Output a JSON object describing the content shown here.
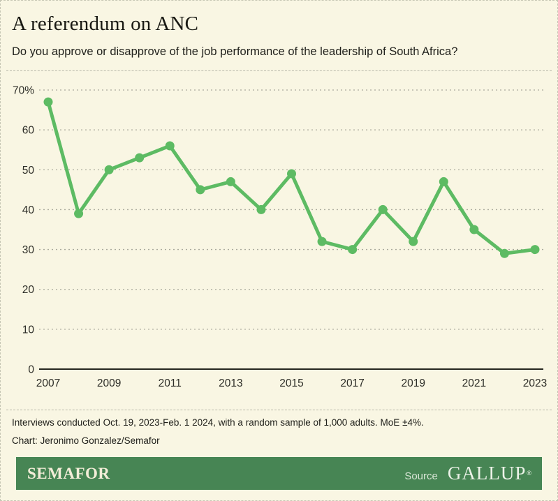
{
  "header": {
    "title": "A referendum on ANC",
    "subtitle": "Do you approve or disapprove of the job performance of the leadership of South Africa?"
  },
  "chart_data": {
    "type": "line",
    "x": [
      2007,
      2008,
      2009,
      2010,
      2011,
      2012,
      2013,
      2014,
      2015,
      2016,
      2017,
      2018,
      2019,
      2020,
      2021,
      2022,
      2023
    ],
    "values": [
      67,
      39,
      50,
      53,
      56,
      45,
      47,
      40,
      49,
      32,
      30,
      40,
      32,
      47,
      35,
      29,
      30
    ],
    "title": "A referendum on ANC",
    "subtitle": "Do you approve or disapprove of the job performance of the leadership of South Africa?",
    "xlabel": "",
    "ylabel": "",
    "ylim": [
      0,
      70
    ],
    "yticks": [
      0,
      10,
      20,
      30,
      40,
      50,
      60,
      70
    ],
    "ytick_labels": [
      "0",
      "10",
      "20",
      "30",
      "40",
      "50",
      "60",
      "70%"
    ],
    "xtick_labels": [
      "2007",
      "2009",
      "2011",
      "2013",
      "2015",
      "2017",
      "2019",
      "2021",
      "2023"
    ],
    "grid": "horizontal-dashed",
    "legend": "none",
    "line_color": "#5dbb63",
    "marker": "circle"
  },
  "footer": {
    "note": "Interviews conducted Oct. 19, 2023-Feb. 1 2024, with a random sample of 1,000 adults. MoE ±4%.",
    "credit": "Chart: Jeronimo Gonzalez/Semafor",
    "brand": "SEMAFOR",
    "source_label": "Source",
    "source_name": "GALLUP",
    "source_mark": "®"
  },
  "colors": {
    "background": "#f9f6e3",
    "accent_green": "#5dbb63",
    "brand_bar_green": "#478554",
    "gridline": "#aaaa9d",
    "axis": "#26261f",
    "text": "#20201b"
  }
}
